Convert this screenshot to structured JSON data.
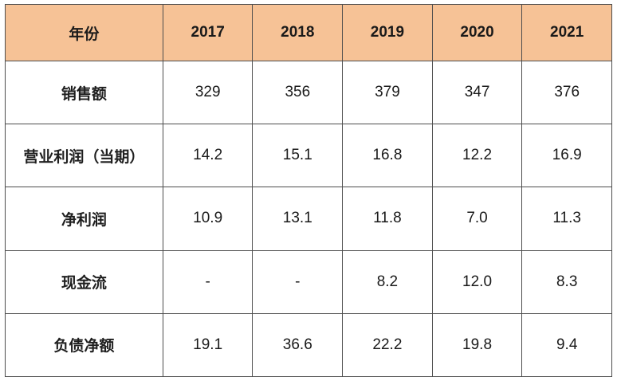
{
  "theme": {
    "header_bg": "#F6C296",
    "border_color": "#4d4d4d",
    "text_color": "#1a1a1a"
  },
  "chart_data": {
    "type": "table",
    "title": "",
    "columns": [
      "年份",
      "2017",
      "2018",
      "2019",
      "2020",
      "2021"
    ],
    "rows": [
      {
        "label": "销售额",
        "values": [
          "329",
          "356",
          "379",
          "347",
          "376"
        ]
      },
      {
        "label": "营业利润（当期）",
        "values": [
          "14.2",
          "15.1",
          "16.8",
          "12.2",
          "16.9"
        ]
      },
      {
        "label": "净利润",
        "values": [
          "10.9",
          "13.1",
          "11.8",
          "7.0",
          "11.3"
        ]
      },
      {
        "label": "现金流",
        "values": [
          "-",
          "-",
          "8.2",
          "12.0",
          "8.3"
        ]
      },
      {
        "label": "负债净额",
        "values": [
          "19.1",
          "36.6",
          "22.2",
          "19.8",
          "9.4"
        ]
      }
    ]
  }
}
